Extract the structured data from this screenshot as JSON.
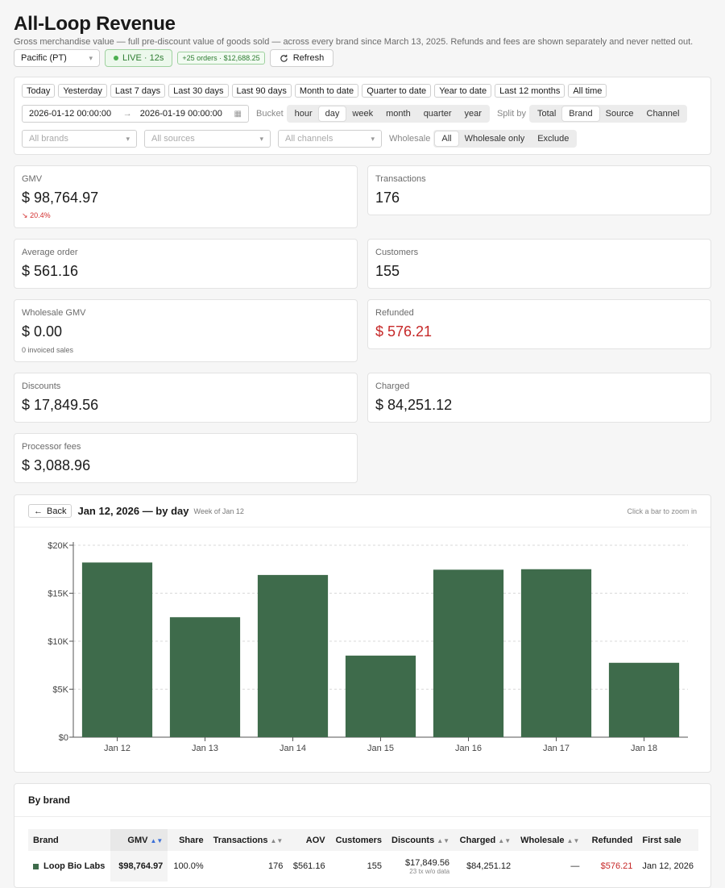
{
  "header": {
    "title": "All-Loop Revenue",
    "subtitle": "Gross merchandise value — full pre-discount value of goods sold — across every brand since March 13, 2025. Refunds and fees are shown separately and never netted out.",
    "timezone": "Pacific (PT)",
    "live_label": "LIVE · 12s",
    "new_orders": "+25 orders · $12,688.25",
    "refresh_label": "Refresh"
  },
  "filters": {
    "quick_ranges": [
      "Today",
      "Yesterday",
      "Last 7 days",
      "Last 30 days",
      "Last 90 days",
      "Month to date",
      "Quarter to date",
      "Year to date",
      "Last 12 months",
      "All time"
    ],
    "date_from": "2026-01-12 00:00:00",
    "date_to": "2026-01-19 00:00:00",
    "arrow": "→",
    "bucket_label": "Bucket",
    "buckets": [
      "hour",
      "day",
      "week",
      "month",
      "quarter",
      "year"
    ],
    "bucket_selected": "day",
    "split_label": "Split by",
    "splits": [
      "Total",
      "Brand",
      "Source",
      "Channel"
    ],
    "split_selected": "Brand",
    "brands_placeholder": "All brands",
    "sources_placeholder": "All sources",
    "channels_placeholder": "All channels",
    "wholesale_label": "Wholesale",
    "wholesale_options": [
      "All",
      "Wholesale only",
      "Exclude"
    ],
    "wholesale_selected": "All"
  },
  "metrics": {
    "gmv": {
      "label": "GMV",
      "value": "$ 98,764.97",
      "delta": "20.4%"
    },
    "transactions": {
      "label": "Transactions",
      "value": "176"
    },
    "aov": {
      "label": "Average order",
      "value": "$ 561.16"
    },
    "customers": {
      "label": "Customers",
      "value": "155"
    },
    "wholesale": {
      "label": "Wholesale GMV",
      "value": "$ 0.00",
      "note": "0 invoiced sales"
    },
    "refunded": {
      "label": "Refunded",
      "value": "$ 576.21"
    },
    "discounts": {
      "label": "Discounts",
      "value": "$ 17,849.56"
    },
    "charged": {
      "label": "Charged",
      "value": "$ 84,251.12"
    },
    "fees": {
      "label": "Processor fees",
      "value": "$ 3,088.96"
    }
  },
  "chart": {
    "back_label": "Back",
    "title": "Jan 12, 2026 — by day",
    "subtitle": "Week of Jan 12",
    "hint": "Click a bar to zoom in"
  },
  "chart_data": {
    "type": "bar",
    "categories": [
      "Jan 12",
      "Jan 13",
      "Jan 14",
      "Jan 15",
      "Jan 16",
      "Jan 17",
      "Jan 18"
    ],
    "values": [
      18200,
      12500,
      16900,
      8500,
      17450,
      17500,
      7750
    ],
    "yticks": [
      "$0",
      "$5K",
      "$10K",
      "$15K",
      "$20K"
    ],
    "ylim": [
      0,
      20000
    ],
    "bar_color": "#3e6b4b",
    "grid": true
  },
  "brand_table": {
    "title": "By brand",
    "columns": [
      "Brand",
      "GMV",
      "Share",
      "Transactions",
      "AOV",
      "Customers",
      "Discounts",
      "Charged",
      "Wholesale",
      "Refunded",
      "First sale"
    ],
    "rows": [
      {
        "brand": "Loop Bio Labs",
        "color": "#3e6b4b",
        "gmv": "$98,764.97",
        "share": "100.0%",
        "transactions": "176",
        "aov": "$561.16",
        "customers": "155",
        "discounts": "$17,849.56",
        "discounts_note": "23 tx w/o data",
        "charged": "$84,251.12",
        "wholesale": "—",
        "refunded": "$576.21",
        "first_sale": "Jan 12, 2026"
      }
    ]
  }
}
